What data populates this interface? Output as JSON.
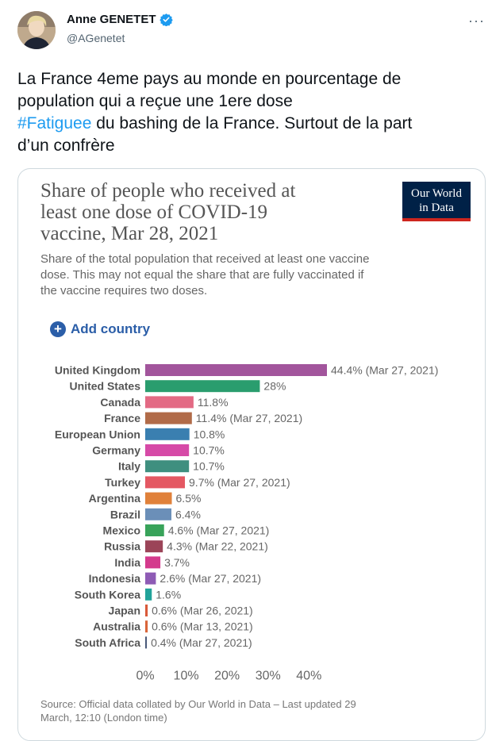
{
  "tweet": {
    "display_name": "Anne GENETET",
    "handle": "@AGenetet",
    "more": "···",
    "text_line1": "La France 4eme pays au monde en pourcentage de",
    "text_line2": "population qui a reçue une 1ere dose",
    "hashtag": "#Fatiguee",
    "text_line3_rest": " du bashing de la France. Surtout de la part",
    "text_line4": "d’un confrère"
  },
  "card": {
    "title_lines": [
      "Share of people who received at",
      "least one dose of COVID-19",
      "vaccine, Mar 28, 2021"
    ],
    "logo_line1": "Our World",
    "logo_line2": "in Data",
    "subtitle_lines": [
      "Share of the total population that received at least one vaccine",
      "dose. This may not equal the share that are fully vaccinated if",
      "the vaccine requires two doses."
    ],
    "add_country_label": "Add country",
    "source_lines": [
      "Source: Official data collated by Our World in Data – Last updated 29",
      "March, 12:10 (London time)"
    ]
  },
  "colors": {
    "accent": "#1d9bf0",
    "owid_navy": "#002147",
    "owid_red": "#ce261e"
  },
  "chart_data": {
    "type": "bar",
    "orientation": "horizontal",
    "unit": "%",
    "xlim": [
      0,
      44.4
    ],
    "xticks": [
      "0%",
      "10%",
      "20%",
      "30%",
      "40%"
    ],
    "xtick_values": [
      0,
      10,
      20,
      30,
      40
    ],
    "categories": [
      "United Kingdom",
      "United States",
      "Canada",
      "France",
      "European Union",
      "Germany",
      "Italy",
      "Turkey",
      "Argentina",
      "Brazil",
      "Mexico",
      "Russia",
      "India",
      "Indonesia",
      "South Korea",
      "Japan",
      "Australia",
      "South Africa"
    ],
    "values": [
      44.4,
      28,
      11.8,
      11.4,
      10.8,
      10.7,
      10.7,
      9.7,
      6.5,
      6.4,
      4.6,
      4.3,
      3.7,
      2.6,
      1.6,
      0.6,
      0.6,
      0.4
    ],
    "labels": [
      "44.4% (Mar 27, 2021)",
      "28%",
      "11.8%",
      "11.4% (Mar 27, 2021)",
      "10.8%",
      "10.7%",
      "10.7%",
      "9.7% (Mar 27, 2021)",
      "6.5%",
      "6.4%",
      "4.6% (Mar 27, 2021)",
      "4.3% (Mar 22, 2021)",
      "3.7%",
      "2.6% (Mar 27, 2021)",
      "1.6%",
      "0.6% (Mar 26, 2021)",
      "0.6% (Mar 13, 2021)",
      "0.4% (Mar 27, 2021)"
    ],
    "bar_colors": [
      "#a2559c",
      "#2a9d6e",
      "#e36a84",
      "#b16b48",
      "#3a7fb0",
      "#d64aa7",
      "#3f8f7f",
      "#e45862",
      "#e0813a",
      "#6b8fb8",
      "#38a35a",
      "#9b4458",
      "#d43a8c",
      "#8e5bb5",
      "#22a39a",
      "#d95a3a",
      "#d9653a",
      "#4a5a7a"
    ]
  }
}
